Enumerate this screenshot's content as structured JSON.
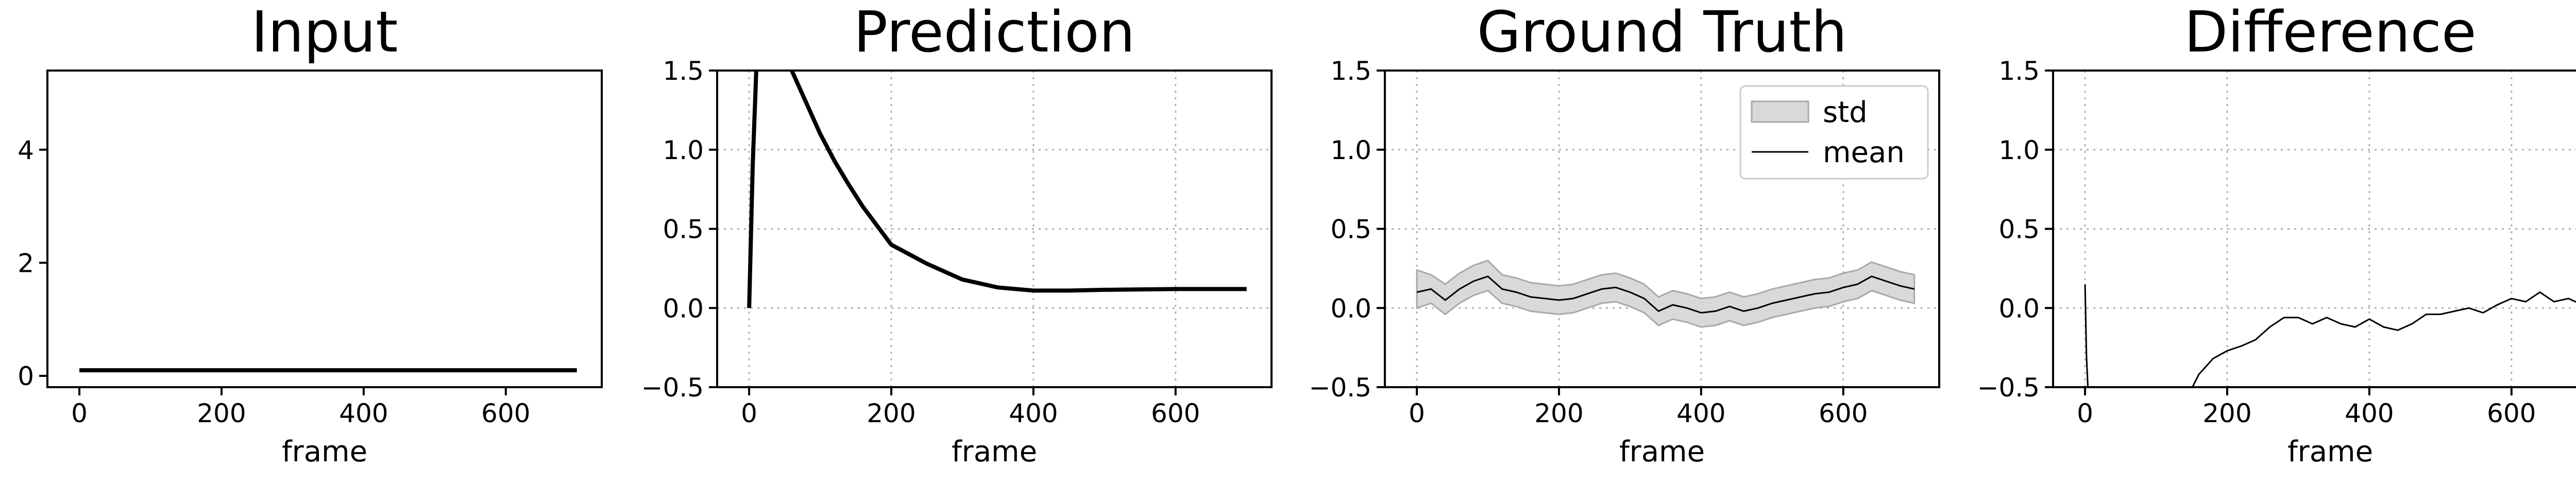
{
  "chart_data": [
    {
      "type": "line",
      "title": "Input",
      "xlabel": "frame",
      "ylabel": "",
      "xlim": [
        -45,
        735
      ],
      "ylim": [
        -0.2,
        5.4
      ],
      "xticks": [
        0,
        200,
        400,
        600
      ],
      "yticks": [
        0,
        2,
        4
      ],
      "grid": false,
      "series": [
        {
          "x": [
            0,
            700
          ],
          "y": [
            0.1,
            0.1
          ],
          "color": "#000000"
        }
      ]
    },
    {
      "type": "line",
      "title": "Prediction",
      "xlabel": "frame",
      "ylabel": "",
      "xlim": [
        -45,
        735
      ],
      "ylim": [
        -0.5,
        1.5
      ],
      "xticks": [
        0,
        200,
        400,
        600
      ],
      "yticks": [
        -0.5,
        0.0,
        0.5,
        1.0,
        1.5
      ],
      "grid": true,
      "series": [
        {
          "x": [
            0,
            5,
            10,
            15,
            60,
            80,
            100,
            120,
            140,
            160,
            180,
            200,
            250,
            300,
            350,
            400,
            450,
            500,
            600,
            700
          ],
          "y": [
            0.0,
            0.9,
            1.5,
            1.9,
            1.5,
            1.3,
            1.1,
            0.93,
            0.78,
            0.64,
            0.52,
            0.4,
            0.28,
            0.18,
            0.13,
            0.11,
            0.11,
            0.115,
            0.12,
            0.12
          ],
          "color": "#000000"
        }
      ]
    },
    {
      "type": "line",
      "title": "Ground Truth",
      "xlabel": "frame",
      "ylabel": "",
      "xlim": [
        -45,
        735
      ],
      "ylim": [
        -0.5,
        1.5
      ],
      "xticks": [
        0,
        200,
        400,
        600
      ],
      "yticks": [
        -0.5,
        0.0,
        0.5,
        1.0,
        1.5
      ],
      "grid": true,
      "legend_position": "upper-right",
      "legend": [
        "std",
        "mean"
      ],
      "series": [
        {
          "name": "mean",
          "x": [
            0,
            20,
            40,
            60,
            80,
            100,
            120,
            140,
            160,
            180,
            200,
            220,
            240,
            260,
            280,
            300,
            320,
            340,
            360,
            380,
            400,
            420,
            440,
            460,
            480,
            500,
            520,
            540,
            560,
            580,
            600,
            620,
            640,
            660,
            680,
            700
          ],
          "y": [
            0.1,
            0.12,
            0.05,
            0.12,
            0.17,
            0.2,
            0.12,
            0.1,
            0.07,
            0.06,
            0.05,
            0.06,
            0.09,
            0.12,
            0.13,
            0.1,
            0.06,
            -0.02,
            0.02,
            0.0,
            -0.03,
            -0.02,
            0.01,
            -0.02,
            0.0,
            0.03,
            0.05,
            0.07,
            0.09,
            0.1,
            0.13,
            0.15,
            0.2,
            0.17,
            0.14,
            0.12
          ],
          "color": "#000000"
        },
        {
          "name": "std",
          "x": [
            0,
            20,
            40,
            60,
            80,
            100,
            120,
            140,
            160,
            180,
            200,
            220,
            240,
            260,
            280,
            300,
            320,
            340,
            360,
            380,
            400,
            420,
            440,
            460,
            480,
            500,
            520,
            540,
            560,
            580,
            600,
            620,
            640,
            660,
            680,
            700
          ],
          "lower": [
            0.0,
            0.03,
            -0.04,
            0.03,
            0.08,
            0.11,
            0.03,
            0.01,
            -0.02,
            -0.03,
            -0.04,
            -0.03,
            0.0,
            0.03,
            0.04,
            0.01,
            -0.03,
            -0.11,
            -0.07,
            -0.09,
            -0.12,
            -0.11,
            -0.08,
            -0.11,
            -0.09,
            -0.06,
            -0.04,
            -0.02,
            0.0,
            0.01,
            0.04,
            0.06,
            0.11,
            0.08,
            0.05,
            0.03
          ],
          "upper": [
            0.24,
            0.21,
            0.15,
            0.22,
            0.27,
            0.3,
            0.21,
            0.19,
            0.16,
            0.15,
            0.14,
            0.15,
            0.18,
            0.21,
            0.22,
            0.19,
            0.15,
            0.07,
            0.11,
            0.09,
            0.06,
            0.07,
            0.1,
            0.07,
            0.09,
            0.12,
            0.14,
            0.16,
            0.18,
            0.19,
            0.22,
            0.24,
            0.29,
            0.26,
            0.23,
            0.21
          ],
          "color": "#d9d9d9"
        }
      ]
    },
    {
      "type": "line",
      "title": "Difference",
      "xlabel": "frame",
      "ylabel": "",
      "xlim": [
        -45,
        735
      ],
      "ylim": [
        -0.5,
        1.5
      ],
      "xticks": [
        0,
        200,
        400,
        600
      ],
      "yticks": [
        -0.5,
        0.0,
        0.5,
        1.0,
        1.5
      ],
      "grid": true,
      "series": [
        {
          "x": [
            0,
            2,
            5,
            140,
            160,
            180,
            200,
            220,
            240,
            260,
            280,
            300,
            320,
            340,
            360,
            380,
            400,
            420,
            440,
            460,
            480,
            500,
            520,
            540,
            560,
            580,
            600,
            620,
            640,
            660,
            680,
            700
          ],
          "y": [
            0.15,
            -0.3,
            -0.6,
            -0.6,
            -0.42,
            -0.32,
            -0.27,
            -0.24,
            -0.2,
            -0.12,
            -0.06,
            -0.06,
            -0.1,
            -0.06,
            -0.1,
            -0.12,
            -0.07,
            -0.12,
            -0.14,
            -0.1,
            -0.04,
            -0.04,
            -0.02,
            0.0,
            -0.03,
            0.02,
            0.06,
            0.04,
            0.1,
            0.04,
            0.06,
            0.02
          ],
          "color": "#000000"
        }
      ]
    }
  ]
}
